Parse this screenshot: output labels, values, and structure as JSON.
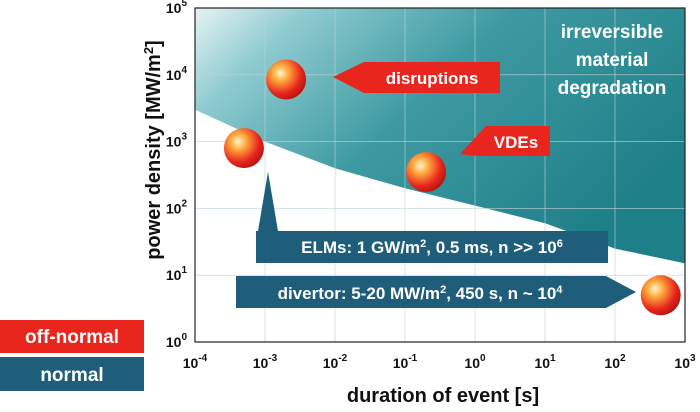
{
  "chart_data": {
    "type": "scatter",
    "xscale": "log",
    "yscale": "log",
    "xlim": [
      0.0001,
      1000
    ],
    "ylim": [
      1,
      100000
    ],
    "grid": true,
    "xlabel": "duration of event [s]",
    "ylabel_prefix": "power density [MW/m",
    "ylabel_sup": "2",
    "ylabel_suffix": "]",
    "x_ticks": [
      {
        "base": "10",
        "exp": "-4",
        "value": 0.0001
      },
      {
        "base": "10",
        "exp": "-3",
        "value": 0.001
      },
      {
        "base": "10",
        "exp": "-2",
        "value": 0.01
      },
      {
        "base": "10",
        "exp": "-1",
        "value": 0.1
      },
      {
        "base": "10",
        "exp": "0",
        "value": 1
      },
      {
        "base": "10",
        "exp": "1",
        "value": 10
      },
      {
        "base": "10",
        "exp": "2",
        "value": 100
      },
      {
        "base": "10",
        "exp": "3",
        "value": 1000
      }
    ],
    "y_ticks": [
      {
        "base": "10",
        "exp": "0",
        "value": 1
      },
      {
        "base": "10",
        "exp": "1",
        "value": 10
      },
      {
        "base": "10",
        "exp": "2",
        "value": 100
      },
      {
        "base": "10",
        "exp": "3",
        "value": 1000
      },
      {
        "base": "10",
        "exp": "4",
        "value": 10000
      },
      {
        "base": "10",
        "exp": "5",
        "value": 100000
      }
    ],
    "region": {
      "label_lines": [
        "irreversible",
        "material",
        "degradation"
      ],
      "color": "#2a8a93",
      "boundary": [
        {
          "x": 0.0001,
          "y": 3000
        },
        {
          "x": 0.001,
          "y": 1000
        },
        {
          "x": 0.01,
          "y": 400
        },
        {
          "x": 0.1,
          "y": 200
        },
        {
          "x": 1,
          "y": 110
        },
        {
          "x": 10,
          "y": 60
        },
        {
          "x": 100,
          "y": 25
        },
        {
          "x": 1000,
          "y": 15
        }
      ]
    },
    "points": [
      {
        "id": "disruptions",
        "x": 0.002,
        "y": 8500
      },
      {
        "id": "elms",
        "x": 0.0005,
        "y": 800
      },
      {
        "id": "vdes",
        "x": 0.2,
        "y": 350
      },
      {
        "id": "divertor",
        "x": 450,
        "y": 5
      }
    ],
    "callouts": {
      "disruptions": {
        "text": "disruptions",
        "color": "#e8261e"
      },
      "vdes": {
        "text": "VDEs",
        "color": "#e8261e"
      },
      "elms": {
        "pre": "ELMs: 1 GW/m",
        "sup1": "2",
        "mid": ", 0.5 ms, n >> 10",
        "sup2": "6",
        "color": "#1f5e7a"
      },
      "divertor": {
        "pre": "divertor: 5-20 MW/m",
        "sup1": "2",
        "mid": ", 450 s, n ~ 10",
        "sup2": "4",
        "color": "#1f5e7a"
      }
    }
  },
  "legend": [
    {
      "label": "off-normal",
      "color": "#e8261e"
    },
    {
      "label": "normal",
      "color": "#1f5e7a"
    }
  ]
}
